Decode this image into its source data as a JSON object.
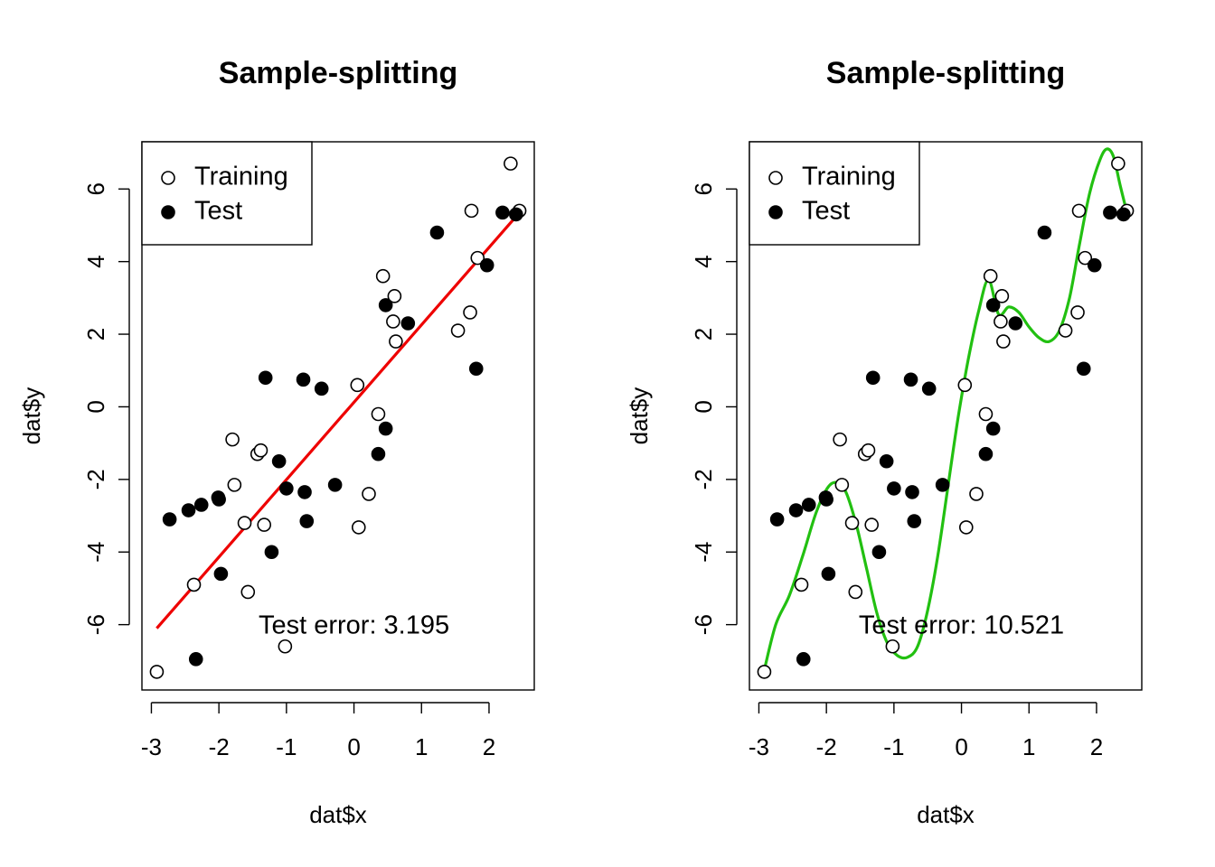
{
  "chart_data": [
    {
      "type": "scatter",
      "title": "Sample-splitting",
      "xlabel": "dat$x",
      "ylabel": "dat$y",
      "xlim": [
        -3.14,
        2.67
      ],
      "ylim": [
        -7.8,
        7.3
      ],
      "x_ticks": [
        -3,
        -2,
        -1,
        0,
        1,
        2
      ],
      "x_tick_labels": [
        "-3",
        "-2",
        "-1",
        "0",
        "1",
        "2"
      ],
      "y_ticks": [
        -6,
        -4,
        -2,
        0,
        2,
        4,
        6
      ],
      "y_tick_labels": [
        "-6",
        "-4",
        "-2",
        "0",
        "2",
        "4",
        "6"
      ],
      "legend": {
        "position": "top-left",
        "entries": [
          "Training",
          "Test"
        ]
      },
      "annotation": "Test error: 3.195",
      "series": [
        {
          "name": "Training",
          "marker": "open-circle",
          "x": [
            -2.92,
            -2.37,
            -1.8,
            -1.77,
            -1.62,
            -1.57,
            -1.43,
            -1.38,
            -1.33,
            -1.02,
            0.07,
            0.05,
            0.22,
            0.36,
            0.43,
            0.58,
            0.6,
            0.62,
            1.54,
            1.72,
            1.74,
            1.83,
            2.32,
            2.45
          ],
          "y": [
            -7.3,
            -4.9,
            -0.9,
            -2.15,
            -3.2,
            -5.1,
            -1.3,
            -1.2,
            -3.25,
            -6.6,
            -3.32,
            0.6,
            -2.4,
            -0.2,
            3.6,
            2.35,
            3.05,
            1.8,
            2.1,
            2.6,
            5.4,
            4.1,
            6.7,
            5.4
          ]
        },
        {
          "name": "Test",
          "marker": "filled-circle",
          "x": [
            -2.73,
            -2.45,
            -2.26,
            -2.01,
            -2.0,
            -1.97,
            -2.34,
            -1.31,
            -1.22,
            -1.11,
            -1.0,
            -0.75,
            -0.73,
            -0.7,
            -0.48,
            -0.28,
            0.36,
            0.47,
            0.47,
            0.8,
            1.23,
            1.81,
            1.97,
            2.2,
            2.4
          ],
          "y": [
            -3.1,
            -2.85,
            -2.7,
            -2.5,
            -2.55,
            -4.6,
            -6.95,
            0.8,
            -4.0,
            -1.5,
            -2.25,
            0.75,
            -2.35,
            -3.15,
            0.5,
            -2.15,
            -1.3,
            -0.6,
            2.8,
            2.3,
            4.8,
            1.05,
            3.9,
            5.35,
            5.3
          ]
        }
      ],
      "fit": {
        "color": "#ee0000",
        "x": [
          -2.92,
          2.45
        ],
        "y": [
          -6.1,
          5.35
        ]
      }
    },
    {
      "type": "scatter",
      "title": "Sample-splitting",
      "xlabel": "dat$x",
      "ylabel": "dat$y",
      "xlim": [
        -3.14,
        2.67
      ],
      "ylim": [
        -7.8,
        7.3
      ],
      "x_ticks": [
        -3,
        -2,
        -1,
        0,
        1,
        2
      ],
      "x_tick_labels": [
        "-3",
        "-2",
        "-1",
        "0",
        "1",
        "2"
      ],
      "y_ticks": [
        -6,
        -4,
        -2,
        0,
        2,
        4,
        6
      ],
      "y_tick_labels": [
        "-6",
        "-4",
        "-2",
        "0",
        "2",
        "4",
        "6"
      ],
      "legend": {
        "position": "top-left",
        "entries": [
          "Training",
          "Test"
        ]
      },
      "annotation": "Test error: 10.521",
      "series": [
        {
          "name": "Training",
          "marker": "open-circle",
          "x": [
            -2.92,
            -2.37,
            -1.8,
            -1.77,
            -1.62,
            -1.57,
            -1.43,
            -1.38,
            -1.33,
            -1.02,
            0.07,
            0.05,
            0.22,
            0.36,
            0.43,
            0.58,
            0.6,
            0.62,
            1.54,
            1.72,
            1.74,
            1.83,
            2.32,
            2.45
          ],
          "y": [
            -7.3,
            -4.9,
            -0.9,
            -2.15,
            -3.2,
            -5.1,
            -1.3,
            -1.2,
            -3.25,
            -6.6,
            -3.32,
            0.6,
            -2.4,
            -0.2,
            3.6,
            2.35,
            3.05,
            1.8,
            2.1,
            2.6,
            5.4,
            4.1,
            6.7,
            5.4
          ]
        },
        {
          "name": "Test",
          "marker": "filled-circle",
          "x": [
            -2.73,
            -2.45,
            -2.26,
            -2.01,
            -2.0,
            -1.97,
            -2.34,
            -1.31,
            -1.22,
            -1.11,
            -1.0,
            -0.75,
            -0.73,
            -0.7,
            -0.48,
            -0.28,
            0.36,
            0.47,
            0.47,
            0.8,
            1.23,
            1.81,
            1.97,
            2.2,
            2.4
          ],
          "y": [
            -3.1,
            -2.85,
            -2.7,
            -2.5,
            -2.55,
            -4.6,
            -6.95,
            0.8,
            -4.0,
            -1.5,
            -2.25,
            0.75,
            -2.35,
            -3.15,
            0.5,
            -2.15,
            -1.3,
            -0.6,
            2.8,
            2.3,
            4.8,
            1.05,
            3.9,
            5.35,
            5.3
          ]
        }
      ],
      "fit": {
        "color": "#22c011",
        "x": [
          -2.92,
          -2.75,
          -2.55,
          -2.35,
          -2.15,
          -1.97,
          -1.82,
          -1.7,
          -1.55,
          -1.4,
          -1.25,
          -1.1,
          -0.95,
          -0.8,
          -0.65,
          -0.5,
          -0.35,
          -0.2,
          -0.05,
          0.1,
          0.25,
          0.4,
          0.55,
          0.7,
          0.85,
          1.0,
          1.15,
          1.3,
          1.45,
          1.6,
          1.75,
          1.9,
          2.05,
          2.15,
          2.25,
          2.35,
          2.45
        ],
        "y": [
          -7.25,
          -6.0,
          -5.2,
          -4.1,
          -2.9,
          -2.2,
          -2.1,
          -2.4,
          -3.3,
          -4.5,
          -5.7,
          -6.5,
          -6.85,
          -6.9,
          -6.6,
          -5.6,
          -4.1,
          -2.2,
          -0.3,
          1.3,
          2.6,
          3.5,
          2.55,
          2.75,
          2.6,
          2.2,
          1.9,
          1.8,
          2.1,
          3.0,
          4.5,
          5.9,
          6.8,
          7.1,
          6.9,
          6.1,
          5.35
        ]
      }
    }
  ]
}
